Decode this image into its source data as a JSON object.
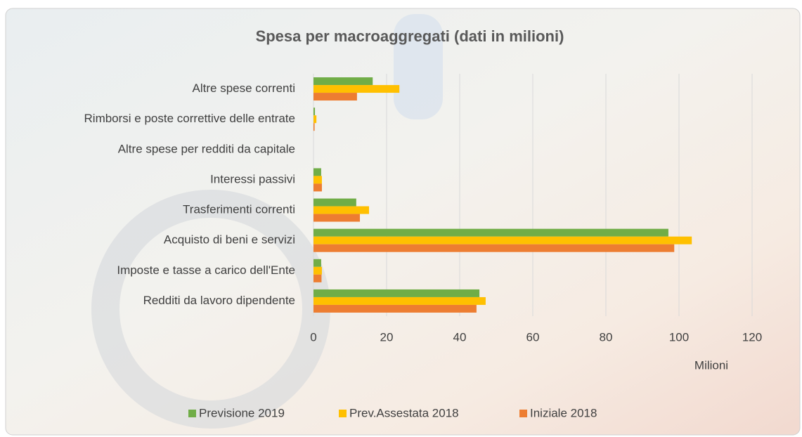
{
  "chart_data": {
    "type": "hbar",
    "title": "Spesa per macroaggregati (dati in milioni)",
    "x_label": "Milioni",
    "categories": [
      "Redditi da lavoro dipendente",
      "Imposte e tasse a carico dell'Ente",
      "Acquisto di beni e servizi",
      "Trasferimenti correnti",
      "Interessi passivi",
      "Altre spese per redditi da capitale",
      "Rimborsi e poste correttive delle entrate",
      "Altre spese correnti"
    ],
    "series": [
      {
        "name": "Previsione 2019",
        "color": "#70ad47",
        "values": [
          45.4,
          2.1,
          97.1,
          11.7,
          2.1,
          0,
          0.4,
          16.2
        ]
      },
      {
        "name": "Prev.Assestata 2018",
        "color": "#ffc000",
        "values": [
          47.1,
          2.3,
          103.5,
          15.2,
          2.3,
          0,
          0.8,
          23.5
        ]
      },
      {
        "name": "Iniziale 2018",
        "color": "#ed7d31",
        "values": [
          44.6,
          2.2,
          98.7,
          12.7,
          2.3,
          0,
          0.3,
          11.9
        ]
      }
    ],
    "xlim": [
      0,
      120
    ],
    "xticks": [
      0,
      20,
      40,
      60,
      80,
      100,
      120
    ],
    "grid": true
  }
}
